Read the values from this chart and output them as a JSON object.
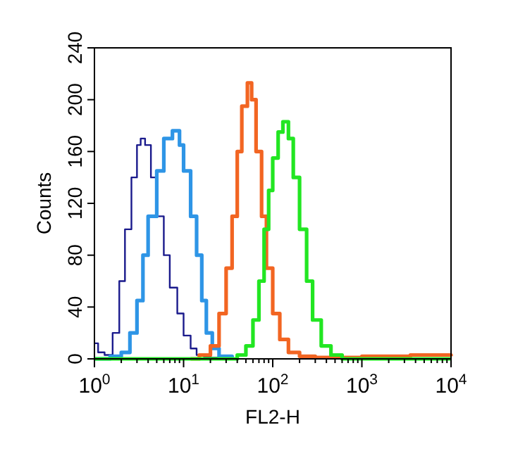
{
  "chart_data": {
    "type": "step",
    "xlabel": "FL2-H",
    "ylabel": "Counts",
    "log": "x",
    "xlim": [
      1,
      10000
    ],
    "ylim": [
      0,
      240
    ],
    "xticks": [
      {
        "value": 1,
        "label": "10$^{0}$"
      },
      {
        "value": 2,
        "label": null
      },
      {
        "value": 3,
        "label": null
      },
      {
        "value": 4,
        "label": null
      },
      {
        "value": 5,
        "label": null
      },
      {
        "value": 6,
        "label": null
      },
      {
        "value": 7,
        "label": null
      },
      {
        "value": 8,
        "label": null
      },
      {
        "value": 9,
        "label": null
      },
      {
        "value": 10,
        "label": "10$^{1}$"
      },
      {
        "value": 20,
        "label": null
      },
      {
        "value": 30,
        "label": null
      },
      {
        "value": 40,
        "label": null
      },
      {
        "value": 50,
        "label": null
      },
      {
        "value": 60,
        "label": null
      },
      {
        "value": 70,
        "label": null
      },
      {
        "value": 80,
        "label": null
      },
      {
        "value": 90,
        "label": null
      },
      {
        "value": 100,
        "label": "10$^{2}$"
      },
      {
        "value": 200,
        "label": null
      },
      {
        "value": 300,
        "label": null
      },
      {
        "value": 400,
        "label": null
      },
      {
        "value": 500,
        "label": null
      },
      {
        "value": 600,
        "label": null
      },
      {
        "value": 700,
        "label": null
      },
      {
        "value": 800,
        "label": null
      },
      {
        "value": 900,
        "label": null
      },
      {
        "value": 1000,
        "label": "10$^{3}$"
      },
      {
        "value": 2000,
        "label": null
      },
      {
        "value": 3000,
        "label": null
      },
      {
        "value": 4000,
        "label": null
      },
      {
        "value": 5000,
        "label": null
      },
      {
        "value": 6000,
        "label": null
      },
      {
        "value": 7000,
        "label": null
      },
      {
        "value": 8000,
        "label": null
      },
      {
        "value": 9000,
        "label": null
      },
      {
        "value": 10000,
        "label": "10$^{4}$"
      }
    ],
    "yticks": [
      0,
      40,
      80,
      120,
      160,
      200,
      240
    ],
    "grid": false,
    "series": [
      {
        "color": "#1a1a8c",
        "x": [
          1,
          1.1,
          1.3,
          1.6,
          1.9,
          2.2,
          2.6,
          3,
          3.3,
          3.7,
          4.3,
          5,
          6,
          7,
          8.5,
          10,
          12,
          14,
          17,
          25
        ],
        "values": [
          12,
          5,
          3,
          20,
          60,
          100,
          140,
          165,
          170,
          165,
          140,
          110,
          80,
          55,
          35,
          18,
          8,
          3,
          1,
          0
        ]
      },
      {
        "color": "#2e95e6",
        "x": [
          1,
          1.5,
          2,
          2.5,
          3,
          3.5,
          4,
          5,
          6,
          7.5,
          9,
          10,
          12,
          14,
          16,
          18,
          21,
          25,
          35
        ],
        "values": [
          0,
          2,
          5,
          20,
          45,
          80,
          110,
          145,
          170,
          176,
          165,
          145,
          110,
          80,
          45,
          20,
          8,
          2,
          0
        ]
      },
      {
        "color": "#f26522",
        "x": [
          12,
          15,
          20,
          25,
          30,
          35,
          40,
          45,
          52,
          58,
          65,
          75,
          85,
          100,
          120,
          150,
          200,
          300,
          1000,
          3500,
          10000
        ],
        "values": [
          0,
          3,
          10,
          35,
          70,
          110,
          160,
          195,
          213,
          200,
          160,
          110,
          70,
          35,
          15,
          5,
          2,
          1,
          2,
          3,
          2
        ]
      },
      {
        "color": "#22e622",
        "x": [
          1,
          30,
          40,
          50,
          60,
          70,
          80,
          90,
          100,
          115,
          130,
          150,
          170,
          200,
          240,
          280,
          350,
          450,
          600,
          10000
        ],
        "values": [
          0,
          0,
          3,
          10,
          30,
          60,
          100,
          130,
          155,
          175,
          183,
          170,
          140,
          100,
          60,
          30,
          10,
          3,
          0,
          0
        ]
      }
    ]
  }
}
